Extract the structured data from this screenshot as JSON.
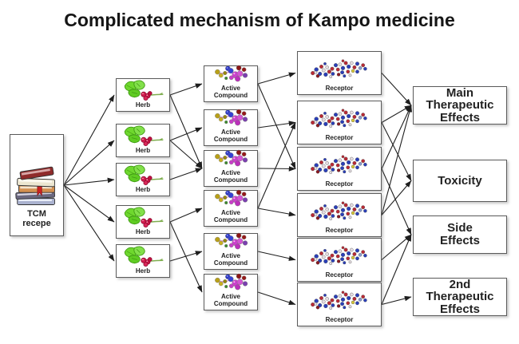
{
  "title": "Complicated mechanism of Kampo medicine",
  "diagram": {
    "nodes": {
      "tcm": {
        "label": "TCM\nrecepe",
        "icon": "books-icon"
      },
      "herbs": [
        "Herb",
        "Herb",
        "Herb",
        "Herb",
        "Herb"
      ],
      "compounds": [
        "Active\nCompound",
        "Active\nCompound",
        "Active\nCompound",
        "Active\nCompound",
        "Active\nCompound",
        "Active\nCompound"
      ],
      "receptors": [
        "Receptor",
        "Receptor",
        "Receptor",
        "Receptor",
        "Receptor",
        "Receptor"
      ],
      "effects": {
        "main": "Main\nTherapeutic\nEffects",
        "toxicity": "Toxicity",
        "side": "Side\nEffects",
        "second": "2nd\nTherapeutic\nEffects"
      }
    },
    "edges": [
      {
        "from": "tcm",
        "to": "h1"
      },
      {
        "from": "tcm",
        "to": "h2"
      },
      {
        "from": "tcm",
        "to": "h3"
      },
      {
        "from": "tcm",
        "to": "h4"
      },
      {
        "from": "tcm",
        "to": "h5"
      },
      {
        "from": "h1",
        "to": "ac1"
      },
      {
        "from": "h1",
        "to": "ac3"
      },
      {
        "from": "h2",
        "to": "ac2"
      },
      {
        "from": "h2",
        "to": "ac3"
      },
      {
        "from": "h3",
        "to": "ac3"
      },
      {
        "from": "h4",
        "to": "ac4"
      },
      {
        "from": "h4",
        "to": "ac6"
      },
      {
        "from": "h5",
        "to": "ac5"
      },
      {
        "from": "ac1",
        "to": "r1"
      },
      {
        "from": "ac1",
        "to": "r3"
      },
      {
        "from": "ac2",
        "to": "r2"
      },
      {
        "from": "ac3",
        "to": "r3"
      },
      {
        "from": "ac4",
        "to": "r2"
      },
      {
        "from": "ac4",
        "to": "r4"
      },
      {
        "from": "ac5",
        "to": "r5"
      },
      {
        "from": "ac6",
        "to": "r6"
      },
      {
        "from": "r1",
        "to": "main"
      },
      {
        "from": "r2",
        "to": "main"
      },
      {
        "from": "r2",
        "to": "tox"
      },
      {
        "from": "r3",
        "to": "main"
      },
      {
        "from": "r3",
        "to": "side"
      },
      {
        "from": "r4",
        "to": "main"
      },
      {
        "from": "r4",
        "to": "tox"
      },
      {
        "from": "r5",
        "to": "side"
      },
      {
        "from": "r6",
        "to": "side"
      },
      {
        "from": "r6",
        "to": "second"
      }
    ],
    "colors": {
      "arrow": "#1f1f1f",
      "box_border": "#5a5a5a",
      "leaf_green": "#6fd82e",
      "berry_red": "#d01c4e",
      "molecule_magenta": "#cc3fcc",
      "molecule_blue": "#2a35c8",
      "receptor_blue": "#2a3fb8",
      "receptor_red": "#b82a35"
    }
  }
}
